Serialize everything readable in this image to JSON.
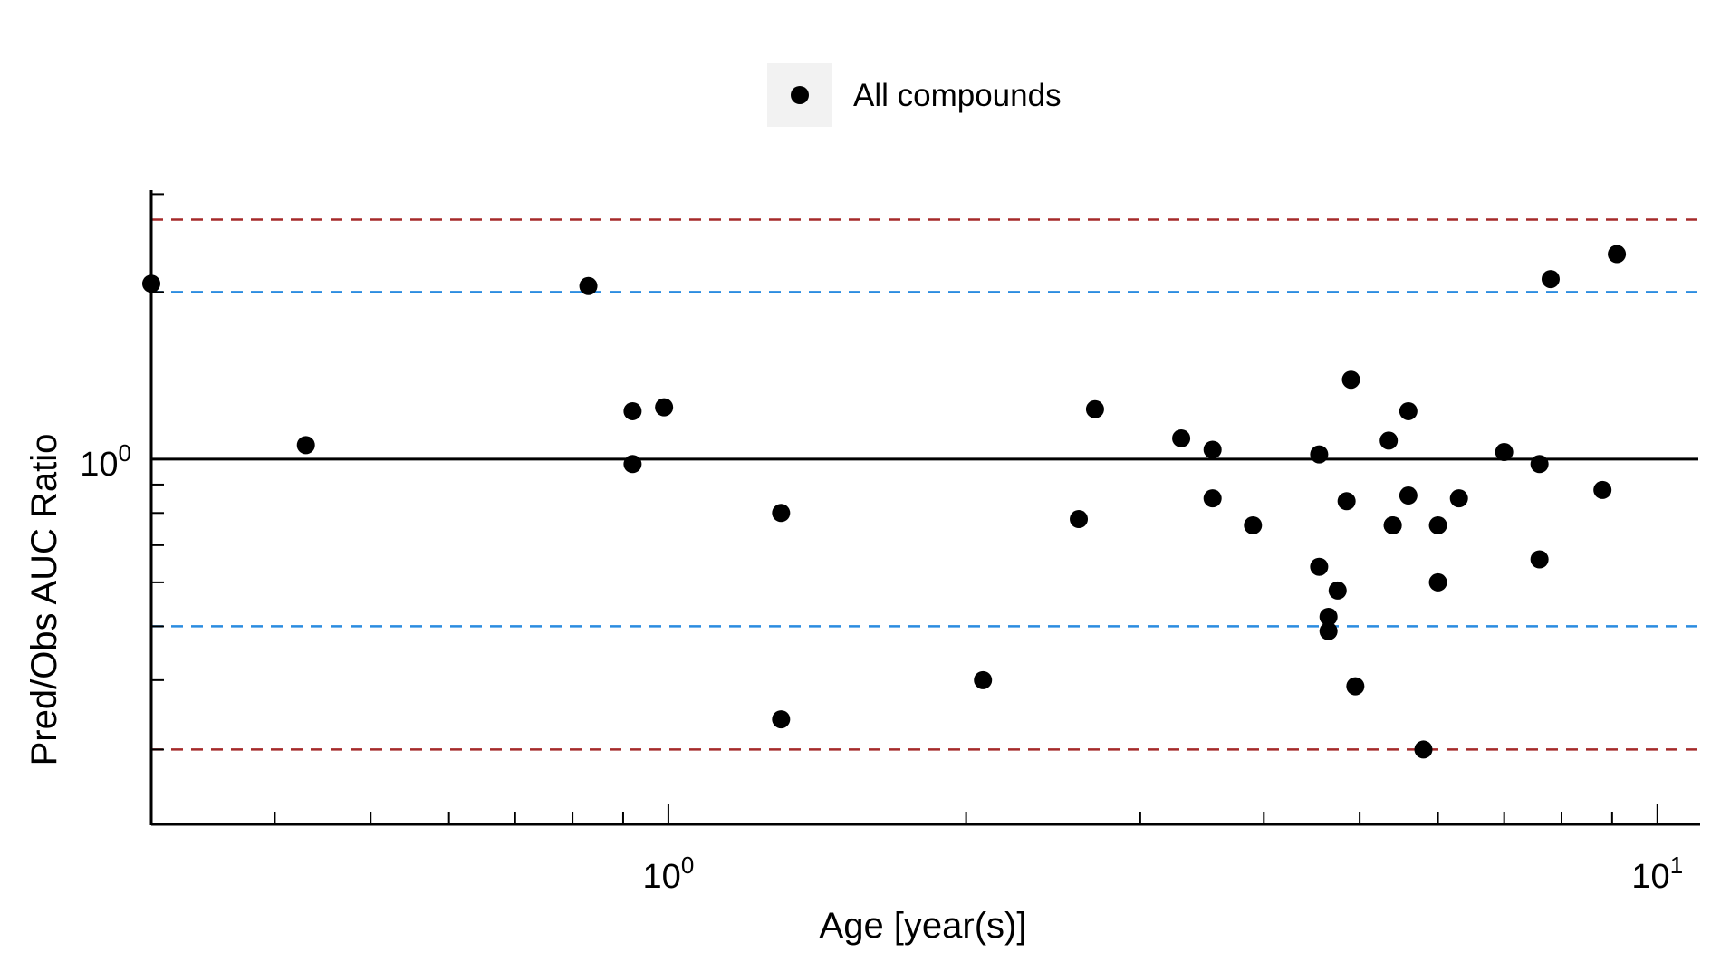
{
  "chart_data": {
    "type": "scatter",
    "xlabel": "Age [year(s)]",
    "ylabel": "Pred/Obs AUC Ratio",
    "x_scale": "log",
    "y_scale": "log",
    "xlim": [
      0.3,
      11
    ],
    "ylim": [
      0.22,
      3.05
    ],
    "grid": false,
    "legend_position": "top-center",
    "x_tick_labels": [
      {
        "value": 1,
        "base": "10",
        "exp": "0"
      },
      {
        "value": 10,
        "base": "10",
        "exp": "1"
      }
    ],
    "y_tick_labels": [
      {
        "value": 1,
        "base": "10",
        "exp": "0"
      }
    ],
    "reference_lines": [
      {
        "y": 1,
        "style": "solid",
        "color": "#000000"
      },
      {
        "y": 2,
        "style": "dashed",
        "color": "#2b8ce0"
      },
      {
        "y": 0.5,
        "style": "dashed",
        "color": "#2b8ce0"
      },
      {
        "y": 2.7,
        "style": "dashed",
        "color": "#a52a2a"
      },
      {
        "y": 0.3,
        "style": "dashed",
        "color": "#a52a2a"
      }
    ],
    "series": [
      {
        "name": "All compounds",
        "color": "#000000",
        "points": [
          {
            "x": 0.3,
            "y": 2.07
          },
          {
            "x": 0.43,
            "y": 1.06
          },
          {
            "x": 0.83,
            "y": 2.05
          },
          {
            "x": 0.92,
            "y": 1.22
          },
          {
            "x": 0.92,
            "y": 0.98
          },
          {
            "x": 0.99,
            "y": 1.24
          },
          {
            "x": 1.3,
            "y": 0.8
          },
          {
            "x": 1.3,
            "y": 0.34
          },
          {
            "x": 2.08,
            "y": 0.4
          },
          {
            "x": 2.6,
            "y": 0.78
          },
          {
            "x": 2.7,
            "y": 1.23
          },
          {
            "x": 3.3,
            "y": 1.09
          },
          {
            "x": 3.55,
            "y": 1.04
          },
          {
            "x": 3.55,
            "y": 0.85
          },
          {
            "x": 3.9,
            "y": 0.76
          },
          {
            "x": 4.55,
            "y": 1.02
          },
          {
            "x": 4.55,
            "y": 0.64
          },
          {
            "x": 4.65,
            "y": 0.52
          },
          {
            "x": 4.65,
            "y": 0.49
          },
          {
            "x": 4.75,
            "y": 0.58
          },
          {
            "x": 4.85,
            "y": 0.84
          },
          {
            "x": 4.9,
            "y": 1.39
          },
          {
            "x": 4.95,
            "y": 0.39
          },
          {
            "x": 5.35,
            "y": 1.08
          },
          {
            "x": 5.4,
            "y": 0.76
          },
          {
            "x": 5.4,
            "y": 0.76
          },
          {
            "x": 5.6,
            "y": 1.22
          },
          {
            "x": 5.6,
            "y": 0.86
          },
          {
            "x": 5.8,
            "y": 0.3
          },
          {
            "x": 6.0,
            "y": 0.76
          },
          {
            "x": 6.0,
            "y": 0.6
          },
          {
            "x": 6.3,
            "y": 0.85
          },
          {
            "x": 7.0,
            "y": 1.03
          },
          {
            "x": 7.6,
            "y": 0.98
          },
          {
            "x": 7.6,
            "y": 0.66
          },
          {
            "x": 7.8,
            "y": 2.11
          },
          {
            "x": 8.8,
            "y": 0.88
          },
          {
            "x": 9.1,
            "y": 2.34
          }
        ]
      }
    ]
  }
}
